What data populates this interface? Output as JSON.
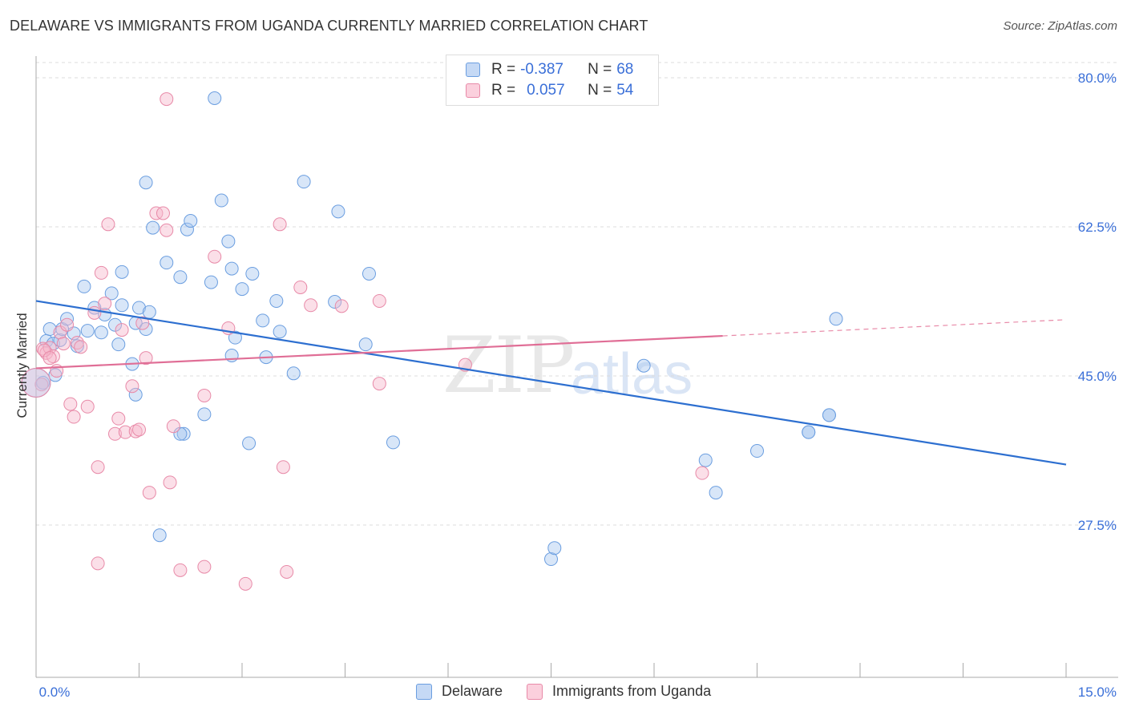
{
  "title": "DELAWARE VS IMMIGRANTS FROM UGANDA CURRENTLY MARRIED CORRELATION CHART",
  "source": "Source: ZipAtlas.com",
  "legend": {
    "r_label": "R =",
    "n_label": "N =",
    "delaware": {
      "r": "-0.387",
      "n": "68",
      "color": "#a9c7f0"
    },
    "uganda": {
      "r": "0.057",
      "n": "54",
      "color": "#f6b8cc"
    }
  },
  "bottom_legend": {
    "delaware": "Delaware",
    "uganda": "Immigrants from Uganda"
  },
  "watermark": {
    "zip": "ZIP",
    "atlas": "atlas"
  },
  "chart_data": {
    "type": "scatter",
    "title": "DELAWARE VS IMMIGRANTS FROM UGANDA CURRENTLY MARRIED CORRELATION CHART",
    "xlabel": "",
    "ylabel": "Currently Married",
    "xlim": [
      0,
      15
    ],
    "ylim": [
      10,
      82.5
    ],
    "x_tick_labels": [
      "0.0%",
      "15.0%"
    ],
    "y_ticks": [
      27.5,
      45.0,
      62.5,
      80.0
    ],
    "y_tick_labels": [
      "27.5%",
      "45.0%",
      "62.5%",
      "80.0%"
    ],
    "grid": true,
    "legend_position": "top-center",
    "series": [
      {
        "name": "Delaware",
        "color": "#a9c7f0",
        "edge": "#6b9ee0",
        "trend": {
          "x": [
            0,
            15
          ],
          "y": [
            53.8,
            34.6
          ],
          "color": "#2d6fd0"
        },
        "points": [
          [
            0.1,
            44.2
          ],
          [
            0.15,
            49.1
          ],
          [
            0.25,
            48.8
          ],
          [
            0.28,
            45.1
          ],
          [
            0.35,
            49.2
          ],
          [
            0.38,
            50.5
          ],
          [
            0.45,
            51.7
          ],
          [
            0.55,
            50.0
          ],
          [
            0.6,
            48.5
          ],
          [
            0.7,
            55.5
          ],
          [
            0.75,
            50.3
          ],
          [
            0.85,
            53.0
          ],
          [
            0.95,
            50.1
          ],
          [
            1.0,
            52.2
          ],
          [
            1.1,
            54.7
          ],
          [
            1.15,
            51.0
          ],
          [
            1.2,
            48.7
          ],
          [
            1.25,
            53.3
          ],
          [
            1.4,
            46.4
          ],
          [
            1.45,
            51.2
          ],
          [
            1.5,
            53.0
          ],
          [
            1.6,
            50.5
          ],
          [
            1.65,
            52.5
          ],
          [
            1.25,
            57.2
          ],
          [
            1.6,
            67.7
          ],
          [
            1.7,
            62.4
          ],
          [
            1.9,
            58.3
          ],
          [
            2.1,
            56.6
          ],
          [
            2.2,
            62.2
          ],
          [
            2.25,
            63.2
          ],
          [
            2.45,
            40.5
          ],
          [
            2.55,
            56.0
          ],
          [
            2.6,
            77.6
          ],
          [
            2.7,
            65.6
          ],
          [
            2.8,
            60.8
          ],
          [
            2.85,
            57.6
          ],
          [
            2.9,
            49.5
          ],
          [
            2.85,
            47.4
          ],
          [
            3.0,
            55.2
          ],
          [
            3.15,
            57.0
          ],
          [
            3.3,
            51.5
          ],
          [
            3.5,
            53.8
          ],
          [
            3.35,
            47.2
          ],
          [
            3.55,
            50.2
          ],
          [
            3.75,
            45.3
          ],
          [
            3.9,
            67.8
          ],
          [
            4.4,
            64.3
          ],
          [
            4.35,
            53.7
          ],
          [
            4.85,
            57.0
          ],
          [
            4.8,
            48.7
          ],
          [
            5.2,
            37.2
          ],
          [
            3.1,
            37.1
          ],
          [
            2.15,
            38.2
          ],
          [
            2.1,
            38.2
          ],
          [
            1.8,
            26.3
          ],
          [
            1.45,
            42.8
          ],
          [
            7.5,
            23.5
          ],
          [
            7.55,
            24.8
          ],
          [
            8.85,
            46.2
          ],
          [
            9.75,
            35.1
          ],
          [
            9.9,
            31.3
          ],
          [
            10.5,
            36.2
          ],
          [
            11.25,
            38.4
          ],
          [
            11.55,
            40.4
          ],
          [
            11.55,
            40.4
          ],
          [
            11.65,
            51.7
          ],
          [
            11.25,
            38.4
          ],
          [
            0.2,
            50.5
          ]
        ]
      },
      {
        "name": "Immigrants from Uganda",
        "color": "#f6b8cc",
        "edge": "#e88aa8",
        "trend": {
          "x": [
            0,
            10
          ],
          "y": [
            45.9,
            49.7
          ],
          "color": "#e06e96"
        },
        "trend_dashed": {
          "x": [
            10,
            15
          ],
          "y": [
            49.7,
            51.6
          ],
          "color": "#e88aa8"
        },
        "points": [
          [
            0.1,
            48.2
          ],
          [
            0.15,
            47.7
          ],
          [
            0.2,
            48.3
          ],
          [
            0.25,
            47.3
          ],
          [
            0.3,
            45.6
          ],
          [
            0.35,
            50.1
          ],
          [
            0.4,
            48.8
          ],
          [
            0.45,
            51.0
          ],
          [
            0.5,
            41.7
          ],
          [
            0.55,
            40.2
          ],
          [
            0.6,
            48.9
          ],
          [
            0.65,
            48.4
          ],
          [
            0.75,
            41.4
          ],
          [
            0.85,
            52.4
          ],
          [
            0.9,
            34.3
          ],
          [
            0.95,
            57.1
          ],
          [
            1.0,
            53.5
          ],
          [
            0.9,
            23.0
          ],
          [
            1.05,
            62.8
          ],
          [
            1.15,
            38.2
          ],
          [
            1.2,
            40.0
          ],
          [
            1.25,
            50.4
          ],
          [
            1.3,
            38.4
          ],
          [
            1.4,
            43.8
          ],
          [
            1.45,
            38.5
          ],
          [
            1.5,
            38.7
          ],
          [
            1.55,
            51.2
          ],
          [
            1.6,
            47.1
          ],
          [
            1.65,
            31.3
          ],
          [
            1.75,
            64.1
          ],
          [
            1.85,
            64.1
          ],
          [
            1.9,
            62.1
          ],
          [
            1.95,
            32.5
          ],
          [
            2.0,
            39.1
          ],
          [
            1.9,
            77.5
          ],
          [
            2.1,
            22.2
          ],
          [
            2.45,
            22.6
          ],
          [
            2.45,
            42.7
          ],
          [
            2.6,
            59.0
          ],
          [
            2.8,
            50.6
          ],
          [
            3.05,
            20.6
          ],
          [
            3.55,
            62.8
          ],
          [
            3.6,
            34.3
          ],
          [
            3.65,
            22.0
          ],
          [
            3.85,
            55.4
          ],
          [
            4.0,
            53.3
          ],
          [
            4.45,
            53.2
          ],
          [
            5.0,
            53.8
          ],
          [
            5.0,
            44.1
          ],
          [
            6.25,
            46.3
          ],
          [
            9.7,
            33.6
          ],
          [
            0.12,
            48.0
          ],
          [
            0.2,
            47.1
          ],
          [
            0.08,
            44.0
          ]
        ]
      }
    ]
  }
}
